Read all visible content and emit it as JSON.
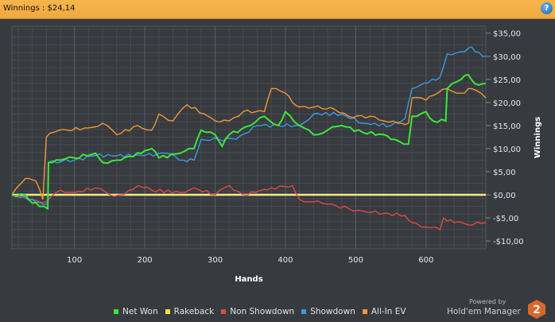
{
  "header": {
    "title": "Winnings : $24,14",
    "help_icon": "help-icon"
  },
  "branding": {
    "powered_by": "Powered by",
    "product": "Hold'em Manager",
    "logo_text": "2"
  },
  "chart_data": {
    "type": "line",
    "title": "Winnings : $24,14",
    "xlabel": "Hands",
    "ylabel": "Winnings",
    "xlim": [
      11,
      685
    ],
    "ylim": [
      -11.7,
      36.5
    ],
    "xticks": [
      100,
      200,
      300,
      400,
      500,
      600
    ],
    "yticks": [
      35,
      30,
      25,
      20,
      15,
      10,
      5,
      0,
      -5,
      -10
    ],
    "ytick_labels": [
      "$35,00",
      "$30,00",
      "$25,00",
      "$20,00",
      "$15,00",
      "$10,00",
      "$5,00",
      "$0,00",
      "-$5,00",
      "-$10,00"
    ],
    "grid": true,
    "legend_position": "bottom",
    "series": [
      {
        "name": "Net Won",
        "color": "#3ce63c",
        "points": [
          [
            11,
            0
          ],
          [
            30,
            0
          ],
          [
            35,
            -1
          ],
          [
            50,
            -2.5
          ],
          [
            62,
            -3
          ],
          [
            63,
            7
          ],
          [
            80,
            7.5
          ],
          [
            100,
            8
          ],
          [
            130,
            9
          ],
          [
            140,
            7
          ],
          [
            160,
            7.5
          ],
          [
            195,
            9
          ],
          [
            210,
            10
          ],
          [
            220,
            8
          ],
          [
            250,
            9
          ],
          [
            270,
            10
          ],
          [
            280,
            14
          ],
          [
            300,
            13
          ],
          [
            310,
            10.5
          ],
          [
            320,
            13
          ],
          [
            350,
            15
          ],
          [
            370,
            17
          ],
          [
            390,
            15
          ],
          [
            400,
            18
          ],
          [
            420,
            15
          ],
          [
            440,
            13
          ],
          [
            460,
            14
          ],
          [
            480,
            15
          ],
          [
            510,
            13.5
          ],
          [
            540,
            13
          ],
          [
            555,
            12
          ],
          [
            575,
            11
          ],
          [
            580,
            17
          ],
          [
            600,
            18
          ],
          [
            610,
            16
          ],
          [
            628,
            16
          ],
          [
            630,
            23
          ],
          [
            650,
            25
          ],
          [
            660,
            26
          ],
          [
            670,
            24
          ],
          [
            685,
            24.1
          ]
        ]
      },
      {
        "name": "Rakeback",
        "color": "#f0e040",
        "points": [
          [
            11,
            0
          ],
          [
            685,
            0
          ]
        ]
      },
      {
        "name": "Non Showdown",
        "color": "#e04848",
        "points": [
          [
            11,
            0
          ],
          [
            40,
            -1
          ],
          [
            60,
            -1.5
          ],
          [
            80,
            1
          ],
          [
            100,
            0.5
          ],
          [
            130,
            1.5
          ],
          [
            150,
            0
          ],
          [
            170,
            0
          ],
          [
            190,
            2
          ],
          [
            210,
            1
          ],
          [
            250,
            0.5
          ],
          [
            270,
            1.5
          ],
          [
            300,
            0
          ],
          [
            320,
            2
          ],
          [
            340,
            0
          ],
          [
            380,
            1.5
          ],
          [
            410,
            2
          ],
          [
            420,
            -1
          ],
          [
            440,
            -1.5
          ],
          [
            460,
            -2
          ],
          [
            490,
            -3
          ],
          [
            510,
            -3.5
          ],
          [
            540,
            -4
          ],
          [
            570,
            -4.5
          ],
          [
            580,
            -6
          ],
          [
            600,
            -7
          ],
          [
            620,
            -7.5
          ],
          [
            625,
            -5
          ],
          [
            640,
            -6
          ],
          [
            660,
            -6.5
          ],
          [
            685,
            -6
          ]
        ]
      },
      {
        "name": "Showdown",
        "color": "#3a9ae0",
        "points": [
          [
            11,
            0
          ],
          [
            40,
            -1
          ],
          [
            55,
            -2
          ],
          [
            62,
            -2
          ],
          [
            63,
            7
          ],
          [
            100,
            7.5
          ],
          [
            130,
            8.5
          ],
          [
            200,
            8.5
          ],
          [
            230,
            9
          ],
          [
            255,
            7.5
          ],
          [
            270,
            7.5
          ],
          [
            280,
            12
          ],
          [
            330,
            12
          ],
          [
            360,
            15
          ],
          [
            420,
            15
          ],
          [
            440,
            17.5
          ],
          [
            480,
            17.5
          ],
          [
            510,
            15.5
          ],
          [
            550,
            15
          ],
          [
            570,
            16.5
          ],
          [
            580,
            23
          ],
          [
            620,
            25.5
          ],
          [
            630,
            30.5
          ],
          [
            650,
            31
          ],
          [
            665,
            32
          ],
          [
            680,
            30
          ],
          [
            685,
            30
          ]
        ]
      },
      {
        "name": "All-In EV",
        "color": "#f09838",
        "points": [
          [
            11,
            0
          ],
          [
            30,
            3.5
          ],
          [
            45,
            3
          ],
          [
            55,
            -1
          ],
          [
            60,
            12.5
          ],
          [
            70,
            13.5
          ],
          [
            90,
            14
          ],
          [
            120,
            14.5
          ],
          [
            140,
            15.5
          ],
          [
            160,
            13
          ],
          [
            190,
            15
          ],
          [
            210,
            14
          ],
          [
            220,
            17.5
          ],
          [
            240,
            16
          ],
          [
            260,
            19.5
          ],
          [
            290,
            17
          ],
          [
            300,
            16
          ],
          [
            320,
            16
          ],
          [
            340,
            18
          ],
          [
            370,
            18
          ],
          [
            380,
            23
          ],
          [
            400,
            22
          ],
          [
            410,
            20
          ],
          [
            420,
            19
          ],
          [
            440,
            19
          ],
          [
            470,
            18.5
          ],
          [
            490,
            17
          ],
          [
            520,
            17
          ],
          [
            540,
            16
          ],
          [
            560,
            15.5
          ],
          [
            575,
            15.5
          ],
          [
            580,
            21
          ],
          [
            600,
            20.5
          ],
          [
            610,
            21.5
          ],
          [
            630,
            23
          ],
          [
            650,
            22
          ],
          [
            665,
            23
          ],
          [
            685,
            21
          ]
        ]
      }
    ]
  }
}
